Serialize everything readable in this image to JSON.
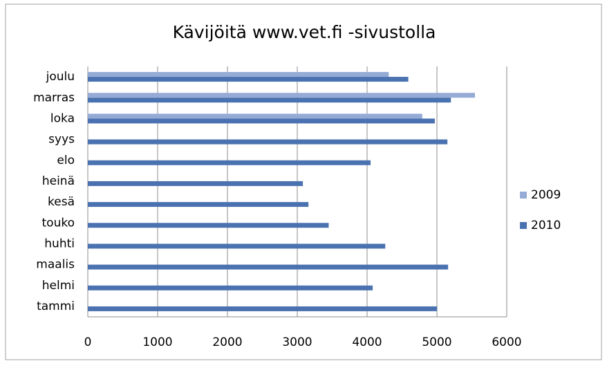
{
  "chart_data": {
    "type": "bar",
    "orientation": "horizontal",
    "title": "Kävijöitä www.vet.fi -sivustolla",
    "categories": [
      "tammi",
      "helmi",
      "maalis",
      "huhti",
      "touko",
      "kesä",
      "heinä",
      "elo",
      "syys",
      "loka",
      "marras",
      "joulu"
    ],
    "series": [
      {
        "name": "2009",
        "color": "#95abd6",
        "values": [
          null,
          null,
          null,
          null,
          null,
          null,
          null,
          null,
          null,
          4790,
          5545,
          4310
        ]
      },
      {
        "name": "2010",
        "color": "#4a72b0",
        "values": [
          5000,
          4080,
          5160,
          4260,
          3450,
          3160,
          3080,
          4050,
          5150,
          4970,
          5200,
          4590
        ]
      }
    ],
    "xlim": [
      0,
      6000
    ],
    "xticks": [
      0,
      1000,
      2000,
      3000,
      4000,
      5000,
      6000
    ],
    "grid": true,
    "legend": "right"
  }
}
